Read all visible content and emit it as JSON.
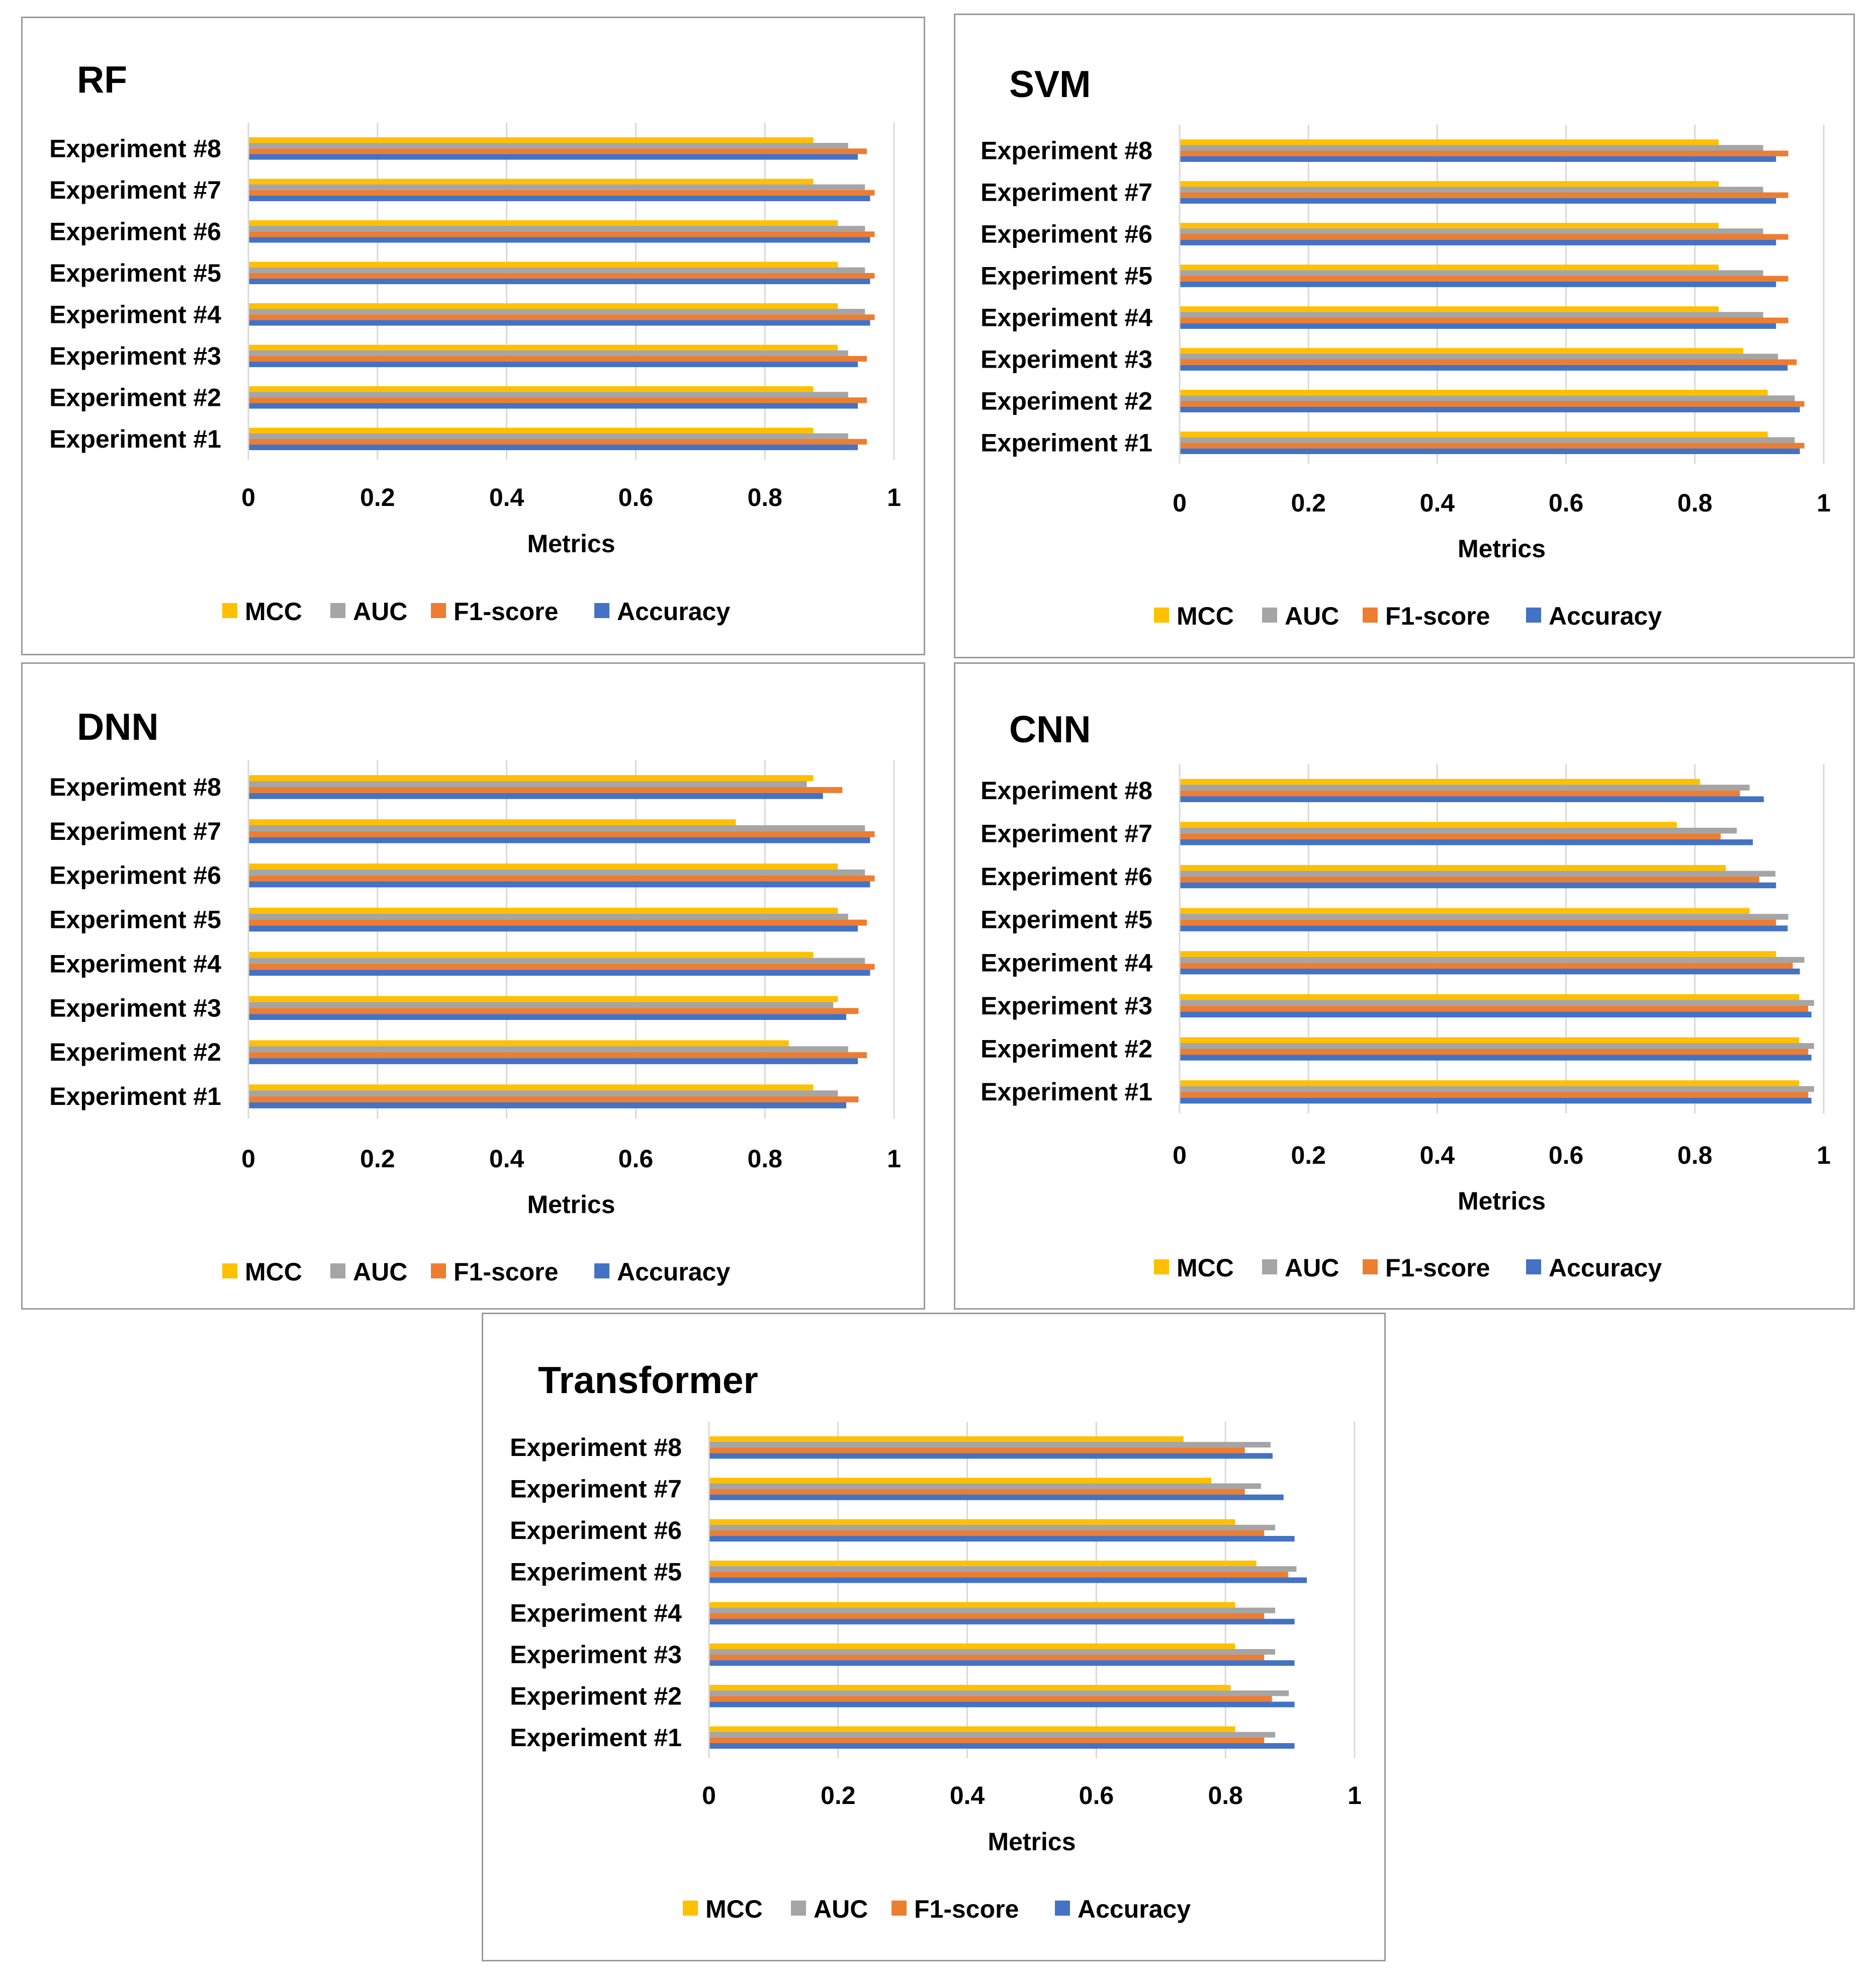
{
  "chart_data": [
    {
      "type": "bar",
      "orientation": "horizontal",
      "title": "RF",
      "xlabel": "Metrics",
      "xlim": [
        0,
        1
      ],
      "xticks": [
        "0",
        "0.2",
        "0.4",
        "0.6",
        "0.8",
        "1"
      ],
      "categories": [
        "Experiment #1",
        "Experiment #2",
        "Experiment #3",
        "Experiment #4",
        "Experiment #5",
        "Experiment #6",
        "Experiment #7",
        "Experiment #8"
      ],
      "series": [
        {
          "name": "MCC",
          "values": [
            0.875,
            0.875,
            0.913,
            0.913,
            0.913,
            0.913,
            0.875,
            0.875
          ]
        },
        {
          "name": "AUC",
          "values": [
            0.929,
            0.929,
            0.929,
            0.955,
            0.955,
            0.955,
            0.955,
            0.929
          ]
        },
        {
          "name": "F1-score",
          "values": [
            0.958,
            0.958,
            0.958,
            0.97,
            0.97,
            0.97,
            0.97,
            0.958
          ]
        },
        {
          "name": "Accuracy",
          "values": [
            0.944,
            0.944,
            0.944,
            0.963,
            0.963,
            0.963,
            0.963,
            0.944
          ]
        }
      ],
      "legend": [
        "MCC",
        "AUC",
        "F1-score",
        "Accuracy"
      ],
      "legend_position": "bottom"
    },
    {
      "type": "bar",
      "orientation": "horizontal",
      "title": "SVM",
      "xlabel": "Metrics",
      "xlim": [
        0,
        1
      ],
      "xticks": [
        "0",
        "0.2",
        "0.4",
        "0.6",
        "0.8",
        "1"
      ],
      "categories": [
        "Experiment #1",
        "Experiment #2",
        "Experiment #3",
        "Experiment #4",
        "Experiment #5",
        "Experiment #6",
        "Experiment #7",
        "Experiment #8"
      ],
      "series": [
        {
          "name": "MCC",
          "values": [
            0.913,
            0.913,
            0.875,
            0.837,
            0.837,
            0.837,
            0.837,
            0.837
          ]
        },
        {
          "name": "AUC",
          "values": [
            0.955,
            0.955,
            0.929,
            0.906,
            0.906,
            0.906,
            0.906,
            0.906
          ]
        },
        {
          "name": "F1-score",
          "values": [
            0.97,
            0.97,
            0.958,
            0.945,
            0.945,
            0.945,
            0.945,
            0.945
          ]
        },
        {
          "name": "Accuracy",
          "values": [
            0.963,
            0.963,
            0.944,
            0.926,
            0.926,
            0.926,
            0.926,
            0.926
          ]
        }
      ],
      "legend": [
        "MCC",
        "AUC",
        "F1-score",
        "Accuracy"
      ],
      "legend_position": "bottom"
    },
    {
      "type": "bar",
      "orientation": "horizontal",
      "title": "DNN",
      "xlabel": "Metrics",
      "xlim": [
        0,
        1
      ],
      "xticks": [
        "0",
        "0.2",
        "0.4",
        "0.6",
        "0.8",
        "1"
      ],
      "categories": [
        "Experiment #1",
        "Experiment #2",
        "Experiment #3",
        "Experiment #4",
        "Experiment #5",
        "Experiment #6",
        "Experiment #7",
        "Experiment #8"
      ],
      "series": [
        {
          "name": "MCC",
          "values": [
            0.875,
            0.837,
            0.913,
            0.875,
            0.913,
            0.913,
            0.755,
            0.875
          ]
        },
        {
          "name": "AUC",
          "values": [
            0.913,
            0.929,
            0.906,
            0.955,
            0.929,
            0.955,
            0.955,
            0.865
          ]
        },
        {
          "name": "F1-score",
          "values": [
            0.945,
            0.958,
            0.945,
            0.97,
            0.958,
            0.97,
            0.97,
            0.92
          ]
        },
        {
          "name": "Accuracy",
          "values": [
            0.926,
            0.944,
            0.926,
            0.963,
            0.944,
            0.963,
            0.963,
            0.89
          ]
        }
      ],
      "legend": [
        "MCC",
        "AUC",
        "F1-score",
        "Accuracy"
      ],
      "legend_position": "bottom"
    },
    {
      "type": "bar",
      "orientation": "horizontal",
      "title": "CNN",
      "xlabel": "Metrics",
      "xlim": [
        0,
        1
      ],
      "xticks": [
        "0",
        "0.2",
        "0.4",
        "0.6",
        "0.8",
        "1"
      ],
      "categories": [
        "Experiment #1",
        "Experiment #2",
        "Experiment #3",
        "Experiment #4",
        "Experiment #5",
        "Experiment #6",
        "Experiment #7",
        "Experiment #8"
      ],
      "series": [
        {
          "name": "MCC",
          "values": [
            0.962,
            0.962,
            0.962,
            0.926,
            0.885,
            0.848,
            0.772,
            0.808
          ]
        },
        {
          "name": "AUC",
          "values": [
            0.985,
            0.985,
            0.985,
            0.97,
            0.945,
            0.925,
            0.865,
            0.885
          ]
        },
        {
          "name": "F1-score",
          "values": [
            0.976,
            0.976,
            0.976,
            0.952,
            0.926,
            0.9,
            0.84,
            0.87
          ]
        },
        {
          "name": "Accuracy",
          "values": [
            0.981,
            0.981,
            0.981,
            0.963,
            0.944,
            0.926,
            0.89,
            0.907
          ]
        }
      ],
      "legend": [
        "MCC",
        "AUC",
        "F1-score",
        "Accuracy"
      ],
      "legend_position": "bottom"
    },
    {
      "type": "bar",
      "orientation": "horizontal",
      "title": "Transformer",
      "xlabel": "Metrics",
      "xlim": [
        0,
        1
      ],
      "xticks": [
        "0",
        "0.2",
        "0.4",
        "0.6",
        "0.8",
        "1"
      ],
      "categories": [
        "Experiment #1",
        "Experiment #2",
        "Experiment #3",
        "Experiment #4",
        "Experiment #5",
        "Experiment #6",
        "Experiment #7",
        "Experiment #8"
      ],
      "series": [
        {
          "name": "MCC",
          "values": [
            0.815,
            0.808,
            0.815,
            0.815,
            0.848,
            0.815,
            0.778,
            0.735
          ]
        },
        {
          "name": "AUC",
          "values": [
            0.877,
            0.898,
            0.877,
            0.877,
            0.91,
            0.877,
            0.855,
            0.87
          ]
        },
        {
          "name": "F1-score",
          "values": [
            0.86,
            0.872,
            0.86,
            0.86,
            0.897,
            0.86,
            0.83,
            0.83
          ]
        },
        {
          "name": "Accuracy",
          "values": [
            0.907,
            0.907,
            0.907,
            0.907,
            0.926,
            0.907,
            0.89,
            0.873
          ]
        }
      ],
      "legend": [
        "MCC",
        "AUC",
        "F1-score",
        "Accuracy"
      ],
      "legend_position": "bottom"
    }
  ],
  "colors": {
    "MCC": "#FFC000",
    "AUC": "#A5A5A5",
    "F1-score": "#ED7D31",
    "Accuracy": "#4472C4",
    "gridline": "#D9D9D9",
    "border": "#9A9A9A"
  }
}
